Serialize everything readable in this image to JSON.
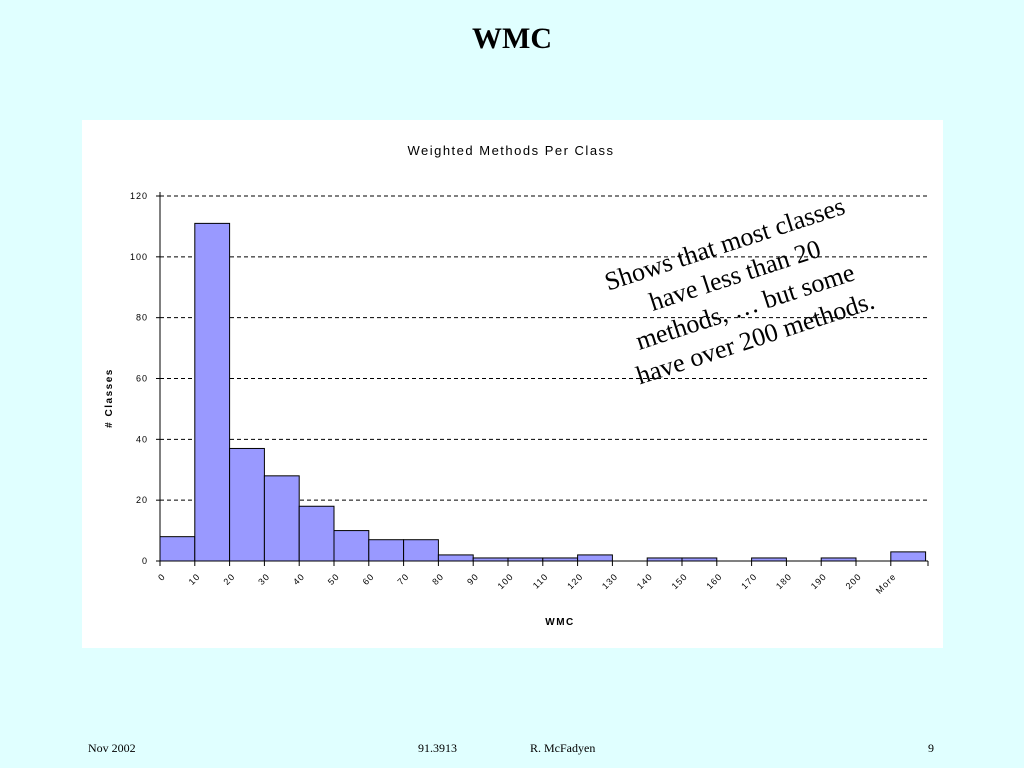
{
  "slide": {
    "title": "WMC",
    "annotation_lines": [
      "Shows that most classes",
      "have less than 20",
      "methods, … but some",
      "have over 200 methods."
    ],
    "footer": {
      "date": "Nov 2002",
      "course": "91.3913",
      "author": "R. McFadyen",
      "page": "9"
    }
  },
  "chart_data": {
    "type": "bar",
    "title": "Weighted Methods Per Class",
    "xlabel": "WMC",
    "ylabel": "# Classes",
    "categories": [
      "0",
      "10",
      "20",
      "30",
      "40",
      "50",
      "60",
      "70",
      "80",
      "90",
      "100",
      "110",
      "120",
      "130",
      "140",
      "150",
      "160",
      "170",
      "180",
      "190",
      "200",
      "More"
    ],
    "values": [
      8,
      111,
      37,
      28,
      18,
      10,
      7,
      7,
      2,
      1,
      1,
      1,
      2,
      0,
      1,
      1,
      0,
      1,
      0,
      1,
      0,
      3
    ],
    "ylim": [
      0,
      120
    ],
    "yticks": [
      0,
      20,
      40,
      60,
      80,
      100,
      120
    ],
    "grid": true,
    "gridline_style": "dashed",
    "bar_color": "#9999ff",
    "bar_edge_color": "#000000"
  }
}
